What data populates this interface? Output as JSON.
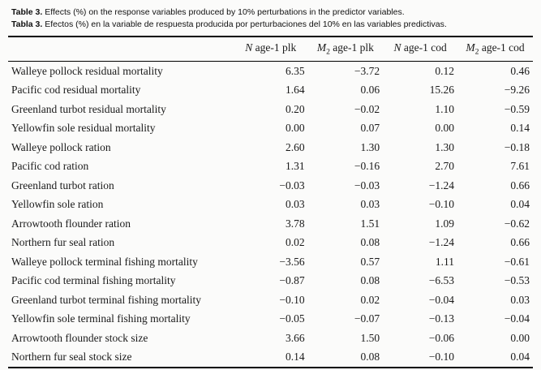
{
  "caption": {
    "en_label": "Table 3.",
    "en_text": " Effects (%) on the response variables produced by 10% perturbations in the predictor variables.",
    "es_label": "Tabla 3.",
    "es_text": " Efectos (%) en la variable de respuesta producida por perturbaciones del 10% en las variables predictivas."
  },
  "chart_data": {
    "type": "table",
    "columns": [
      {
        "var": "N",
        "sub": "",
        "rest": " age-1 plk"
      },
      {
        "var": "M",
        "sub": "2",
        "rest": " age-1 plk"
      },
      {
        "var": "N",
        "sub": "",
        "rest": " age-1 cod"
      },
      {
        "var": "M",
        "sub": "2",
        "rest": " age-1 cod"
      }
    ],
    "rows": [
      {
        "label": "Walleye pollock residual mortality",
        "values": [
          "6.35",
          "−3.72",
          "0.12",
          "0.46"
        ]
      },
      {
        "label": "Pacific cod residual mortality",
        "values": [
          "1.64",
          "0.06",
          "15.26",
          "−9.26"
        ]
      },
      {
        "label": "Greenland turbot residual mortality",
        "values": [
          "0.20",
          "−0.02",
          "1.10",
          "−0.59"
        ]
      },
      {
        "label": "Yellowfin sole residual mortality",
        "values": [
          "0.00",
          "0.07",
          "0.00",
          "0.14"
        ]
      },
      {
        "label": "Walleye pollock ration",
        "values": [
          "2.60",
          "1.30",
          "1.30",
          "−0.18"
        ]
      },
      {
        "label": "Pacific cod ration",
        "values": [
          "1.31",
          "−0.16",
          "2.70",
          "7.61"
        ]
      },
      {
        "label": "Greenland turbot ration",
        "values": [
          "−0.03",
          "−0.03",
          "−1.24",
          "0.66"
        ]
      },
      {
        "label": "Yellowfin sole ration",
        "values": [
          "0.03",
          "0.03",
          "−0.10",
          "0.04"
        ]
      },
      {
        "label": "Arrowtooth flounder ration",
        "values": [
          "3.78",
          "1.51",
          "1.09",
          "−0.62"
        ]
      },
      {
        "label": "Northern fur seal ration",
        "values": [
          "0.02",
          "0.08",
          "−1.24",
          "0.66"
        ]
      },
      {
        "label": "Walleye pollock terminal fishing mortality",
        "values": [
          "−3.56",
          "0.57",
          "1.11",
          "−0.61"
        ]
      },
      {
        "label": "Pacific cod terminal fishing mortality",
        "values": [
          "−0.87",
          "0.08",
          "−6.53",
          "−0.53"
        ]
      },
      {
        "label": "Greenland turbot terminal fishing mortality",
        "values": [
          "−0.10",
          "0.02",
          "−0.04",
          "0.03"
        ]
      },
      {
        "label": "Yellowfin sole terminal fishing mortality",
        "values": [
          "−0.05",
          "−0.07",
          "−0.13",
          "−0.04"
        ]
      },
      {
        "label": "Arrowtooth flounder stock size",
        "values": [
          "3.66",
          "1.50",
          "−0.06",
          "0.00"
        ]
      },
      {
        "label": "Northern fur seal stock size",
        "values": [
          "0.14",
          "0.08",
          "−0.10",
          "0.04"
        ]
      }
    ]
  }
}
